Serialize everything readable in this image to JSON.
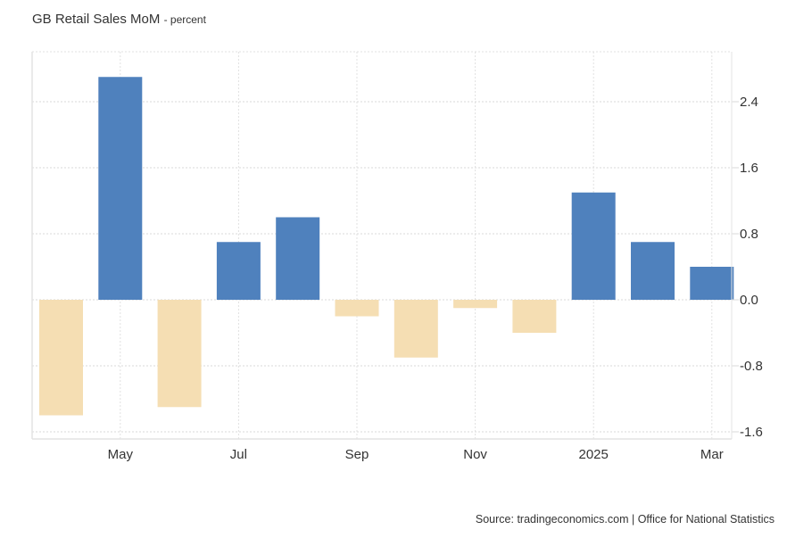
{
  "chart_data": {
    "type": "bar",
    "title": "GB Retail Sales MoM",
    "unit": "percent",
    "xlabel": "",
    "ylabel": "",
    "categories": [
      "Apr 2024",
      "May 2024",
      "Jun 2024",
      "Jul 2024",
      "Aug 2024",
      "Sep 2024",
      "Oct 2024",
      "Nov 2024",
      "Dec 2024",
      "Jan 2025",
      "Feb 2025",
      "Mar 2025"
    ],
    "values": [
      -1.4,
      2.7,
      -1.3,
      0.7,
      1.0,
      -0.2,
      -0.7,
      -0.1,
      -0.4,
      1.3,
      0.7,
      0.4
    ],
    "x_tick_labels": [
      {
        "label": "May",
        "index": 1
      },
      {
        "label": "Jul",
        "index": 3
      },
      {
        "label": "Sep",
        "index": 5
      },
      {
        "label": "Nov",
        "index": 7
      },
      {
        "label": "2025",
        "index": 9
      },
      {
        "label": "Mar",
        "index": 11
      }
    ],
    "y_ticks": [
      "2.4",
      "1.6",
      "0.8",
      "0.0",
      "-0.8",
      "-1.6"
    ],
    "y_tick_values": [
      2.4,
      1.6,
      0.8,
      0.0,
      -0.8,
      -1.6
    ],
    "ylim": [
      -1.65,
      3.0
    ],
    "y_axis_side": "right",
    "grid": true,
    "colors": {
      "positive": "#4f81bd",
      "negative": "#f5deb3"
    },
    "source": "Source: tradingeconomics.com | Office for National Statistics"
  }
}
